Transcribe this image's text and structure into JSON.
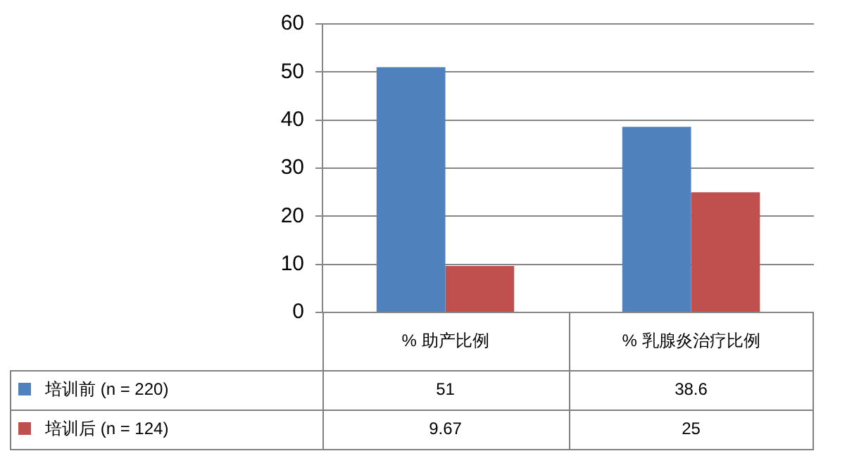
{
  "chart_data": {
    "type": "bar",
    "categories": [
      "% 助产比例",
      "% 乳腺炎治疗比例"
    ],
    "series": [
      {
        "name": "培训前 (n = 220)",
        "color": "#4f81bd",
        "values": [
          51,
          38.6
        ]
      },
      {
        "name": "培训后 (n = 124)",
        "color": "#c0504d",
        "values": [
          9.67,
          25
        ]
      }
    ],
    "ylim": [
      0,
      60
    ],
    "yticks": [
      0,
      10,
      20,
      30,
      40,
      50,
      60
    ],
    "grid": "y",
    "legend": "bottom",
    "data_labels": true
  }
}
